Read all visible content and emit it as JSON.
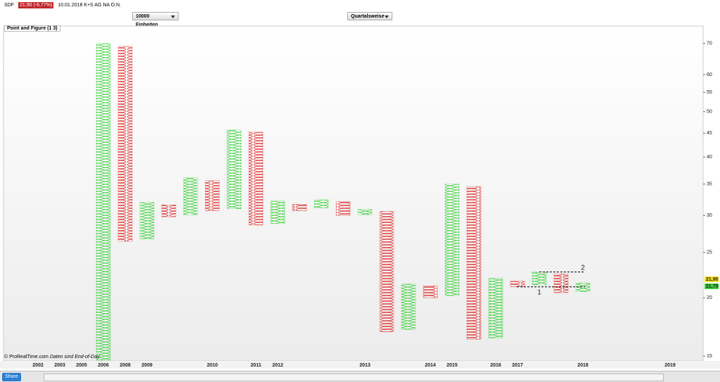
{
  "header": {
    "symbol": "SDF",
    "price_change": "21,90 (-6,77%)",
    "instrument": "10.01.2018 K+S AG NA O.N.",
    "units_select": "10000 Einheiten",
    "period_select": "Quartalsweise",
    "panel_label": "Point and Figure (1 3)",
    "copyright": "© ProRealTime.com",
    "data_note": "Daten sind End-of-Day",
    "share_button": "Share"
  },
  "chart_data": {
    "type": "point-and-figure",
    "categories": [
      "2002",
      "2003",
      "2005",
      "2006",
      "2008",
      "2009",
      null,
      null,
      "2010",
      null,
      "2011",
      "2012",
      null,
      null,
      null,
      "2013",
      null,
      null,
      "2014",
      "2015",
      null,
      "2016",
      "2017",
      null,
      null,
      "2018",
      null,
      null,
      null,
      "2019"
    ],
    "high": [
      null,
      null,
      null,
      70.0,
      69.0,
      32.0,
      31.6,
      36.1,
      35.6,
      45.7,
      45.2,
      32.2,
      31.7,
      32.4,
      32.1,
      30.9,
      30.6,
      21.4,
      21.2,
      35.0,
      34.6,
      22.0,
      21.7,
      22.7,
      22.5,
      21.5,
      null,
      null,
      null,
      null
    ],
    "low": [
      null,
      null,
      null,
      14.7,
      26.4,
      26.7,
      29.8,
      30.1,
      30.7,
      31.0,
      28.6,
      28.8,
      30.7,
      31.1,
      30.0,
      30.1,
      16.9,
      17.1,
      20.0,
      20.2,
      16.3,
      16.4,
      21.1,
      21.3,
      20.5,
      20.6,
      null,
      null,
      null,
      null
    ],
    "kind": [
      null,
      null,
      null,
      "X",
      "O",
      "X",
      "O",
      "X",
      "O",
      "X",
      "O",
      "X",
      "O",
      "X",
      "O",
      "X",
      "O",
      "X",
      "O",
      "X",
      "O",
      "X",
      "O",
      "X",
      "O",
      "X",
      null,
      null,
      null,
      null
    ],
    "colors": {
      "X": "#3cd23c",
      "O": "#e02828"
    },
    "log_scale": true,
    "ylim": [
      14.7,
      76
    ],
    "yticks": [
      15,
      20,
      25,
      30,
      35,
      40,
      45,
      50,
      55,
      60,
      70
    ],
    "price_labels": [
      {
        "value": 21.9,
        "label": "21,90",
        "color": "#f5e020"
      },
      {
        "value": 21.75,
        "label": "21,75",
        "color": "#3cd23c"
      }
    ],
    "annotations": [
      {
        "label": "1",
        "level": 21.1
      },
      {
        "label": "2",
        "level": 22.7
      }
    ]
  }
}
